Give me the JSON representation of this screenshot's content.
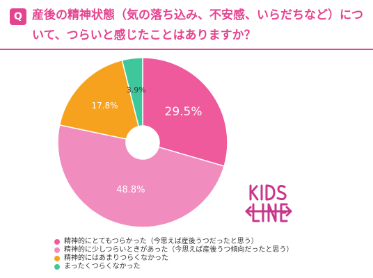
{
  "question": {
    "badge": "Q",
    "text": "産後の精神状態（気の落ち込み、不安感、いらだちなど）について、つらいと感じたことはありますか？"
  },
  "colors": {
    "accent": "#e4448f",
    "slice1": "#ef5a9c",
    "slice2": "#f08cbe",
    "slice3": "#f6a21f",
    "slice4": "#3ec79a",
    "logo": "#c8368a"
  },
  "logo": {
    "text": "KIDS LINE"
  },
  "chart_data": {
    "type": "pie",
    "donut": true,
    "start_angle_deg": 0,
    "direction": "clockwise",
    "slices": [
      {
        "label": "精神的にとてもつらかった（今思えば産後うつだったと思う）",
        "value": 29.5,
        "display": "29.5%",
        "color": "#ef5a9c"
      },
      {
        "label": "精神的に少しつらいときがあった（今思えば産後うつ傾向だったと思う）",
        "value": 48.8,
        "display": "48.8%",
        "color": "#f08cbe"
      },
      {
        "label": "精神的にはあまりつらくなかった",
        "value": 17.8,
        "display": "17.8%",
        "color": "#f6a21f"
      },
      {
        "label": "まったくつらくなかった",
        "value": 3.9,
        "display": "3.9%",
        "color": "#3ec79a"
      }
    ],
    "legend_position": "bottom-left"
  }
}
